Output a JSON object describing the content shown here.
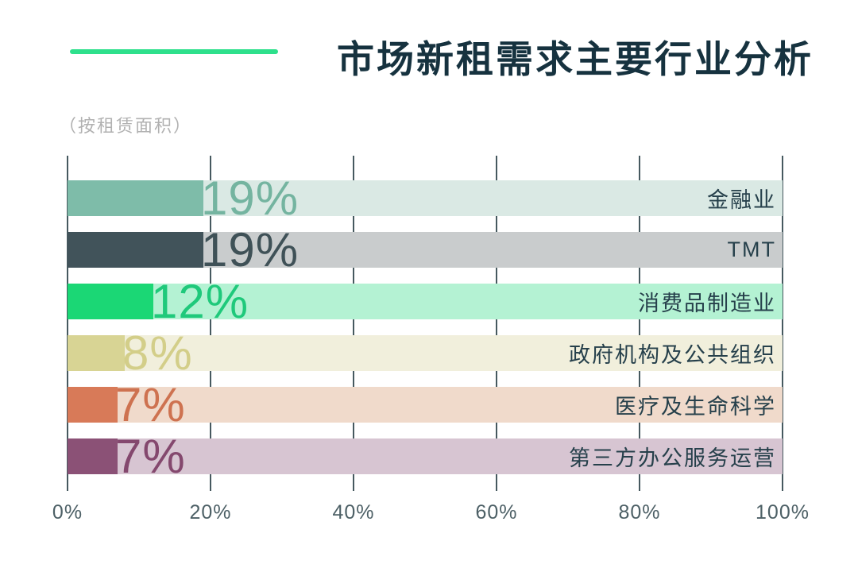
{
  "header": {
    "title": "市场新租需求主要行业分析",
    "subtitle": "（按租赁面积）"
  },
  "colors": {
    "accent_line": "#2EE08C",
    "title_text": "#16323F",
    "subtitle_text": "#B1B1B1",
    "grid_line": "#46595F",
    "tick_text": "#4D6066",
    "category_text": "#26404B",
    "background": "#FFFFFF"
  },
  "chart_data": {
    "type": "bar",
    "orientation": "horizontal",
    "title": "市场新租需求主要行业分析",
    "subtitle": "（按租赁面积）",
    "categories": [
      "金融业",
      "TMT",
      "消费品制造业",
      "政府机构及公共组织",
      "医疗及生命科学",
      "第三方办公服务运营"
    ],
    "values": [
      19,
      19,
      12,
      8,
      7,
      7
    ],
    "value_labels": [
      "19%",
      "19%",
      "12%",
      "8%",
      "7%",
      "7%"
    ],
    "bar_colors": [
      "#7EBCA9",
      "#41535A",
      "#1BD775",
      "#D8D494",
      "#D87A58",
      "#8B5176"
    ],
    "track_colors": [
      "#DAE9E4",
      "#C9CCCD",
      "#B4F2D3",
      "#F1EFDC",
      "#F0DACB",
      "#D7C5D2"
    ],
    "value_label_colors": [
      "#74B4A0",
      "#3F5157",
      "#1FC97B",
      "#D3CE89",
      "#CE7250",
      "#84486E"
    ],
    "x_ticks": [
      "0%",
      "20%",
      "40%",
      "60%",
      "80%",
      "100%"
    ],
    "x_tick_values": [
      0,
      20,
      40,
      60,
      80,
      100
    ],
    "xlim": [
      0,
      100
    ],
    "grid": true,
    "legend": false
  }
}
